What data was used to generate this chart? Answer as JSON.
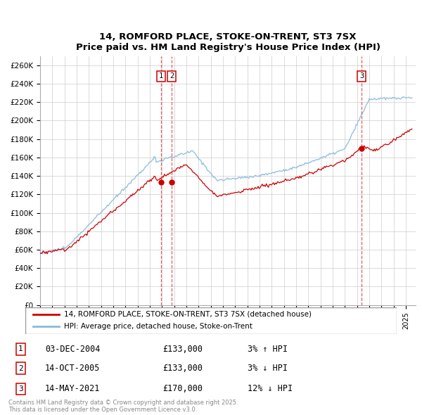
{
  "title": "14, ROMFORD PLACE, STOKE-ON-TRENT, ST3 7SX",
  "subtitle": "Price paid vs. HM Land Registry's House Price Index (HPI)",
  "ylim": [
    0,
    270000
  ],
  "xlim_start": 1995.0,
  "xlim_end": 2025.5,
  "sale_color": "#cc0000",
  "hpi_color": "#88bbdd",
  "vline_color": "#dd4444",
  "legend_sale": "14, ROMFORD PLACE, STOKE-ON-TRENT, ST3 7SX (detached house)",
  "legend_hpi": "HPI: Average price, detached house, Stoke-on-Trent",
  "transactions": [
    {
      "num": 1,
      "date": "03-DEC-2004",
      "price": "£133,000",
      "pct": "3%",
      "arrow": "↑",
      "x_year": 2004.92
    },
    {
      "num": 2,
      "date": "14-OCT-2005",
      "price": "£133,000",
      "pct": "3%",
      "arrow": "↓",
      "x_year": 2005.79
    },
    {
      "num": 3,
      "date": "14-MAY-2021",
      "price": "£170,000",
      "pct": "12%",
      "arrow": "↓",
      "x_year": 2021.37
    }
  ],
  "footnote": "Contains HM Land Registry data © Crown copyright and database right 2025.\nThis data is licensed under the Open Government Licence v3.0."
}
